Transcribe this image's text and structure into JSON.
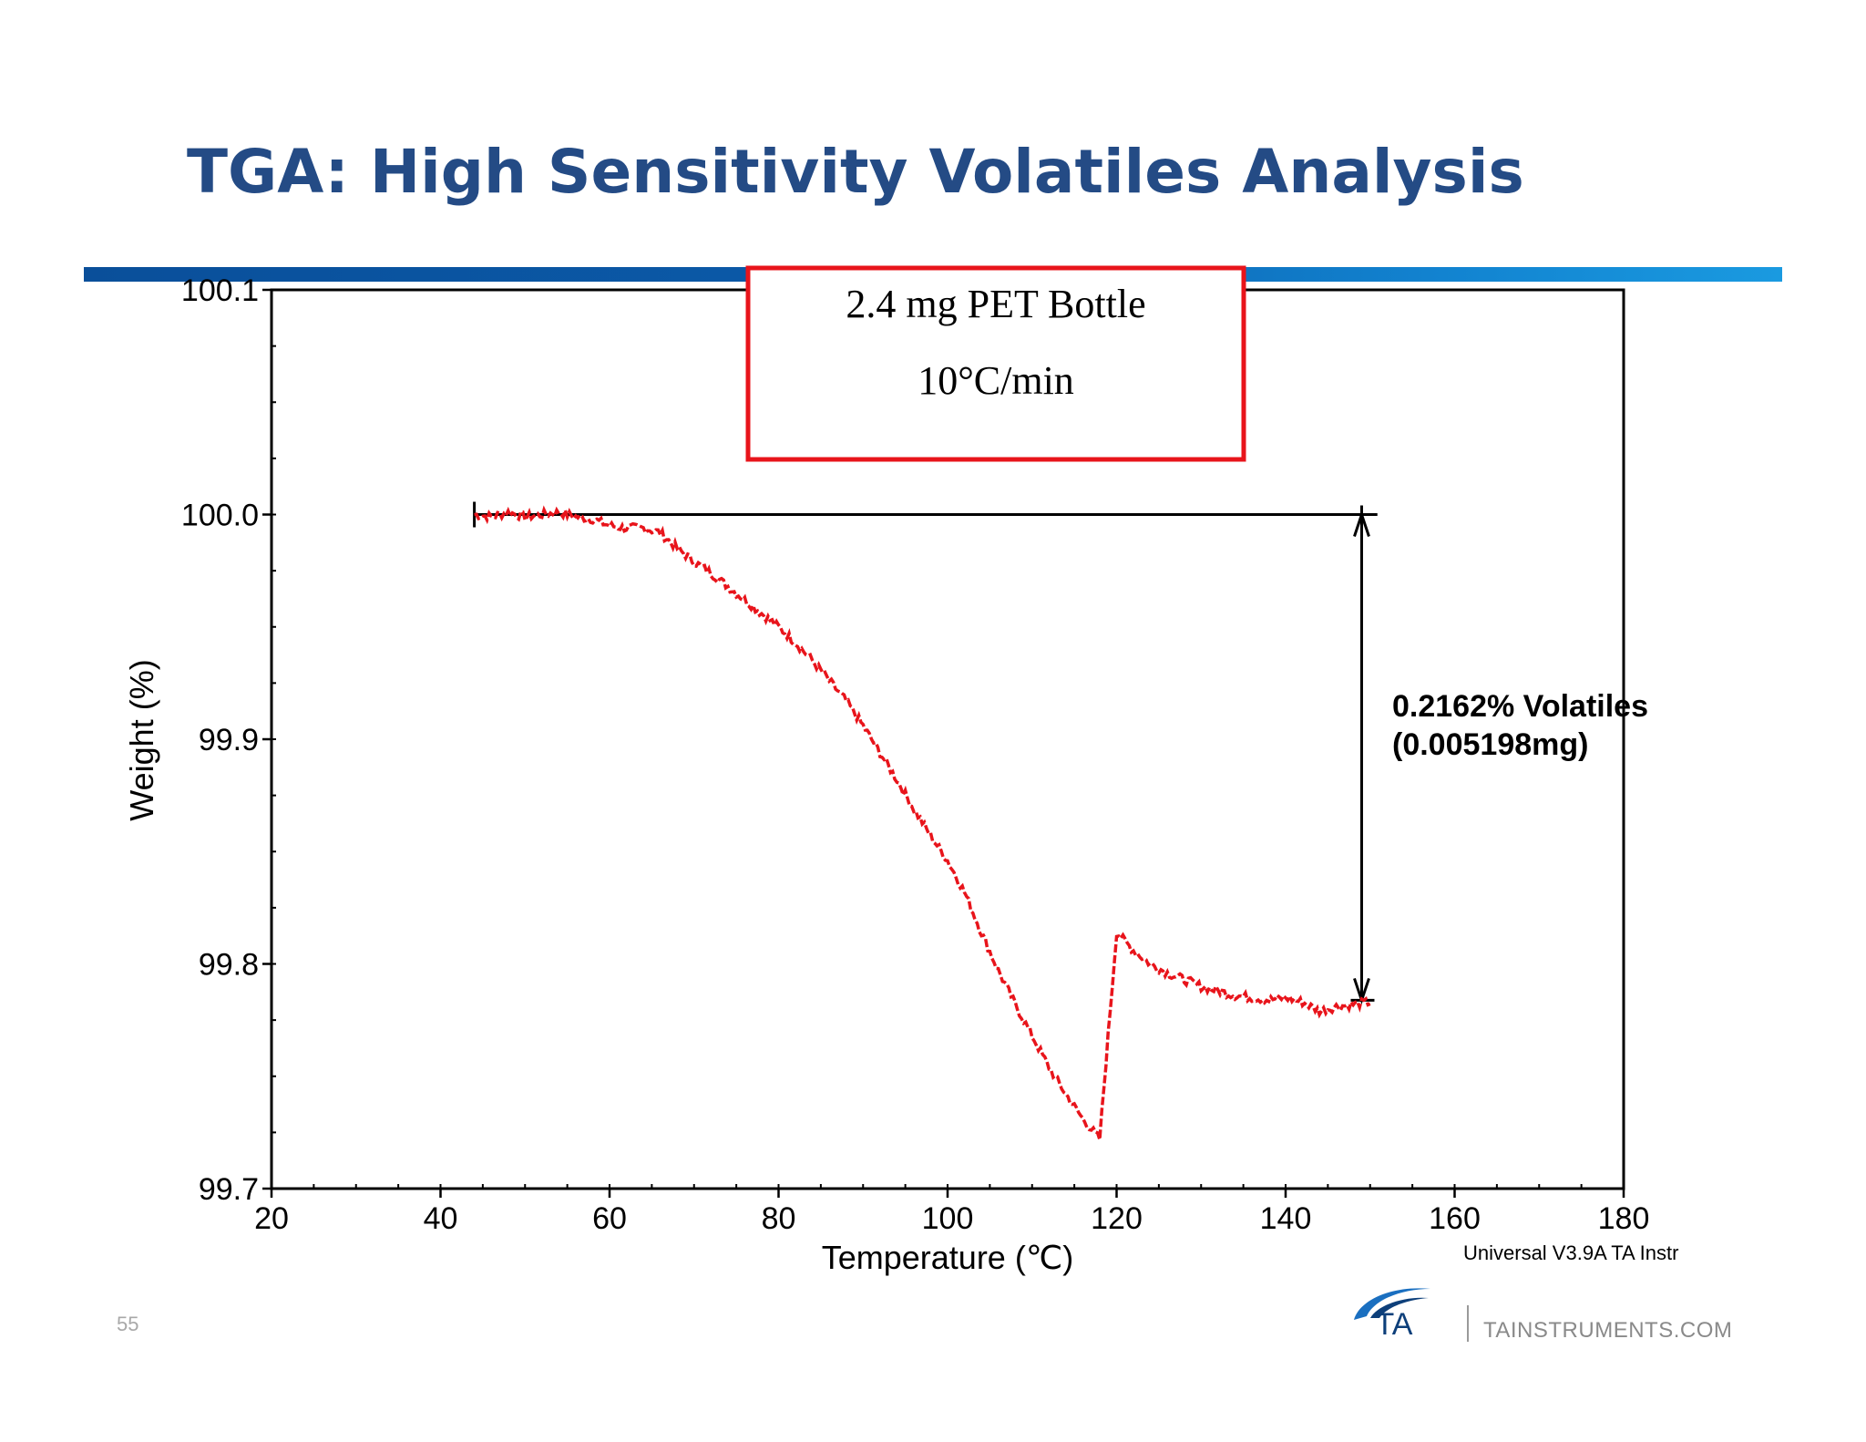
{
  "slide": {
    "title": "TGA: High Sensitivity Volatiles Analysis",
    "page_number": "55",
    "footer_url": "TAINSTRUMENTS.COM",
    "logo_text": "TA",
    "accent_color": "#244b85",
    "rule_color": "#0b5aa8"
  },
  "chart_data": {
    "type": "line",
    "xlabel": "Temperature (℃)",
    "ylabel": "Weight (%)",
    "xlim": [
      20,
      180
    ],
    "ylim": [
      99.7,
      100.1
    ],
    "x_ticks": [
      20,
      40,
      60,
      80,
      100,
      120,
      140,
      160,
      180
    ],
    "y_ticks": [
      99.7,
      99.8,
      99.9,
      100.0,
      100.1
    ],
    "y_tick_labels": [
      "99.7",
      "99.8",
      "99.9",
      "100.0",
      "100.1"
    ],
    "x_minor_step": 5,
    "y_minor_step": 0.025,
    "grid": false,
    "series": [
      {
        "color": "#e8141b",
        "style": "dashed",
        "x": [
          44,
          46,
          48,
          50,
          52,
          54,
          56,
          58,
          60,
          62,
          64,
          66,
          68,
          70,
          72,
          74,
          76,
          78,
          80,
          82,
          84,
          86,
          88,
          90,
          92,
          94,
          96,
          98,
          100,
          102,
          104,
          106,
          108,
          110,
          112,
          114,
          116,
          118,
          120,
          122,
          124,
          126,
          128,
          130,
          132,
          134,
          136,
          138,
          140,
          142,
          144,
          146,
          148,
          150
        ],
        "y": [
          100.0,
          99.999,
          100.001,
          99.999,
          100.0,
          100.001,
          99.999,
          99.998,
          99.995,
          99.994,
          99.994,
          99.992,
          99.985,
          99.979,
          99.974,
          99.968,
          99.962,
          99.956,
          99.95,
          99.943,
          99.935,
          99.926,
          99.917,
          99.906,
          99.894,
          99.882,
          99.869,
          99.857,
          99.846,
          99.832,
          99.814,
          99.797,
          99.782,
          99.768,
          99.754,
          99.742,
          99.731,
          99.722,
          99.814,
          99.806,
          99.8,
          99.796,
          99.793,
          99.79,
          99.788,
          99.786,
          99.785,
          99.784,
          99.785,
          99.783,
          99.779,
          99.781,
          99.782,
          99.783
        ]
      }
    ],
    "annotations": {
      "box_line1": "2.4 mg PET Bottle",
      "box_line2": "10°C/min",
      "box_color": "#e8141b",
      "step_text_line1": "0.2162% Volatiles",
      "step_text_line2": "(0.005198mg)",
      "step_top_y": 100.0,
      "step_bottom_y": 99.7838,
      "step_x_start": 44,
      "step_x_end": 150,
      "step_arrow_x": 149,
      "software_label": "Universal V3.9A TA Instr"
    }
  }
}
